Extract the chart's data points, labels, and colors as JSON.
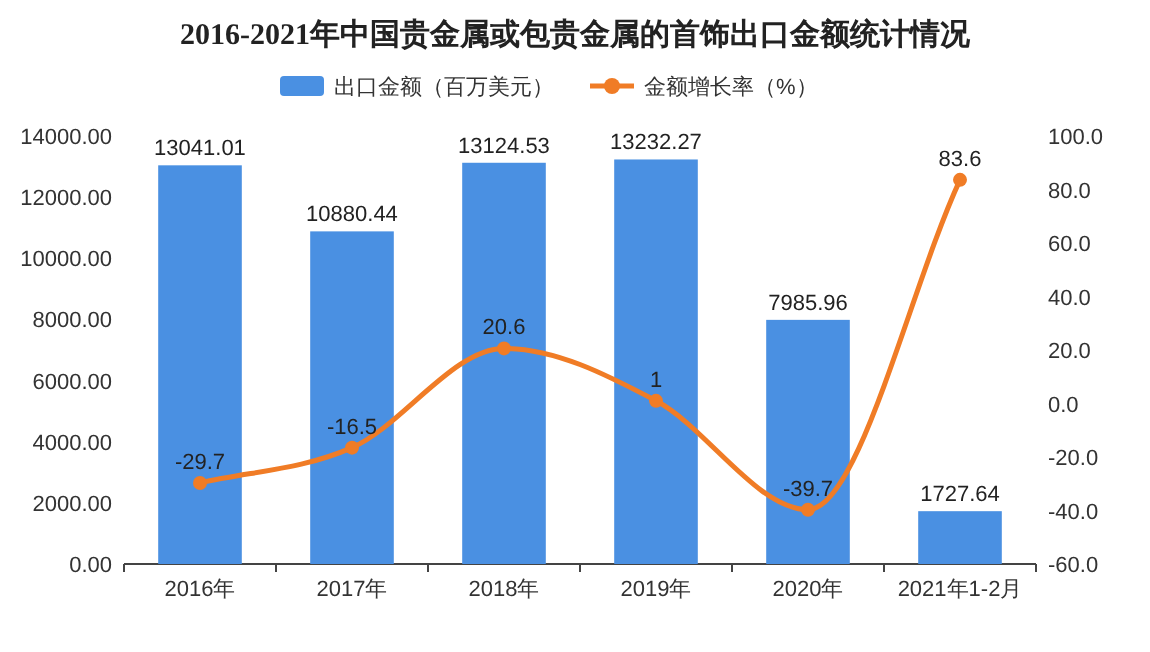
{
  "chart_data": {
    "type": "bar",
    "title": "2016-2021年中国贵金属或包贵金属的首饰出口金额统计情况",
    "categories": [
      "2016年",
      "2017年",
      "2018年",
      "2019年",
      "2020年",
      "2021年1-2月"
    ],
    "series": [
      {
        "name": "出口金额（百万美元）",
        "color": "#4a90e2",
        "values": [
          13041.01,
          10880.44,
          13124.53,
          13232.27,
          7985.96,
          1727.64
        ]
      },
      {
        "name": "金额增长率（%）",
        "type": "line",
        "axis": "y2",
        "color": "#f07c26",
        "marker": "circle",
        "values": [
          -29.7,
          -16.5,
          20.6,
          1,
          -39.7,
          83.6
        ]
      }
    ],
    "ylim": [
      0,
      14000
    ],
    "yticks": [
      {
        "value": 0,
        "label": "0.00"
      },
      {
        "value": 2000,
        "label": "2000.00"
      },
      {
        "value": 4000,
        "label": "4000.00"
      },
      {
        "value": 6000,
        "label": "6000.00"
      },
      {
        "value": 8000,
        "label": "8000.00"
      },
      {
        "value": 10000,
        "label": "10000.00"
      },
      {
        "value": 12000,
        "label": "12000.00"
      },
      {
        "value": 14000,
        "label": "14000.00"
      }
    ],
    "y2lim": [
      -60,
      100
    ],
    "y2ticks": [
      {
        "value": -60,
        "label": "-60.0"
      },
      {
        "value": -40,
        "label": "-40.0"
      },
      {
        "value": -20,
        "label": "-20.0"
      },
      {
        "value": 0,
        "label": "0.0"
      },
      {
        "value": 20,
        "label": "20.0"
      },
      {
        "value": 40,
        "label": "40.0"
      },
      {
        "value": 60,
        "label": "60.0"
      },
      {
        "value": 80,
        "label": "80.0"
      },
      {
        "value": 100,
        "label": "100.0"
      }
    ],
    "data_labels": true,
    "legend": "top"
  }
}
